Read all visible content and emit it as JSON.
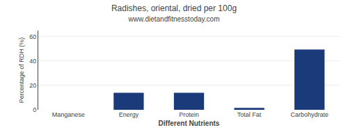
{
  "chart_data": {
    "type": "bar",
    "title": "Radishes, oriental, dried per 100g",
    "subtitle": "www.dietandfitnesstoday.com",
    "xlabel": "Different Nutrients",
    "ylabel": "Percentage of RDH (%)",
    "categories": [
      "Manganese",
      "Energy",
      "Protein",
      "Total Fat",
      "Carbohydrate"
    ],
    "values": [
      0.0,
      14.0,
      14.0,
      1.5,
      49.5
    ],
    "color": "#1a3a7a",
    "ylim": [
      0,
      65
    ],
    "yticks": [
      0,
      20,
      40,
      60
    ],
    "grid": true
  }
}
